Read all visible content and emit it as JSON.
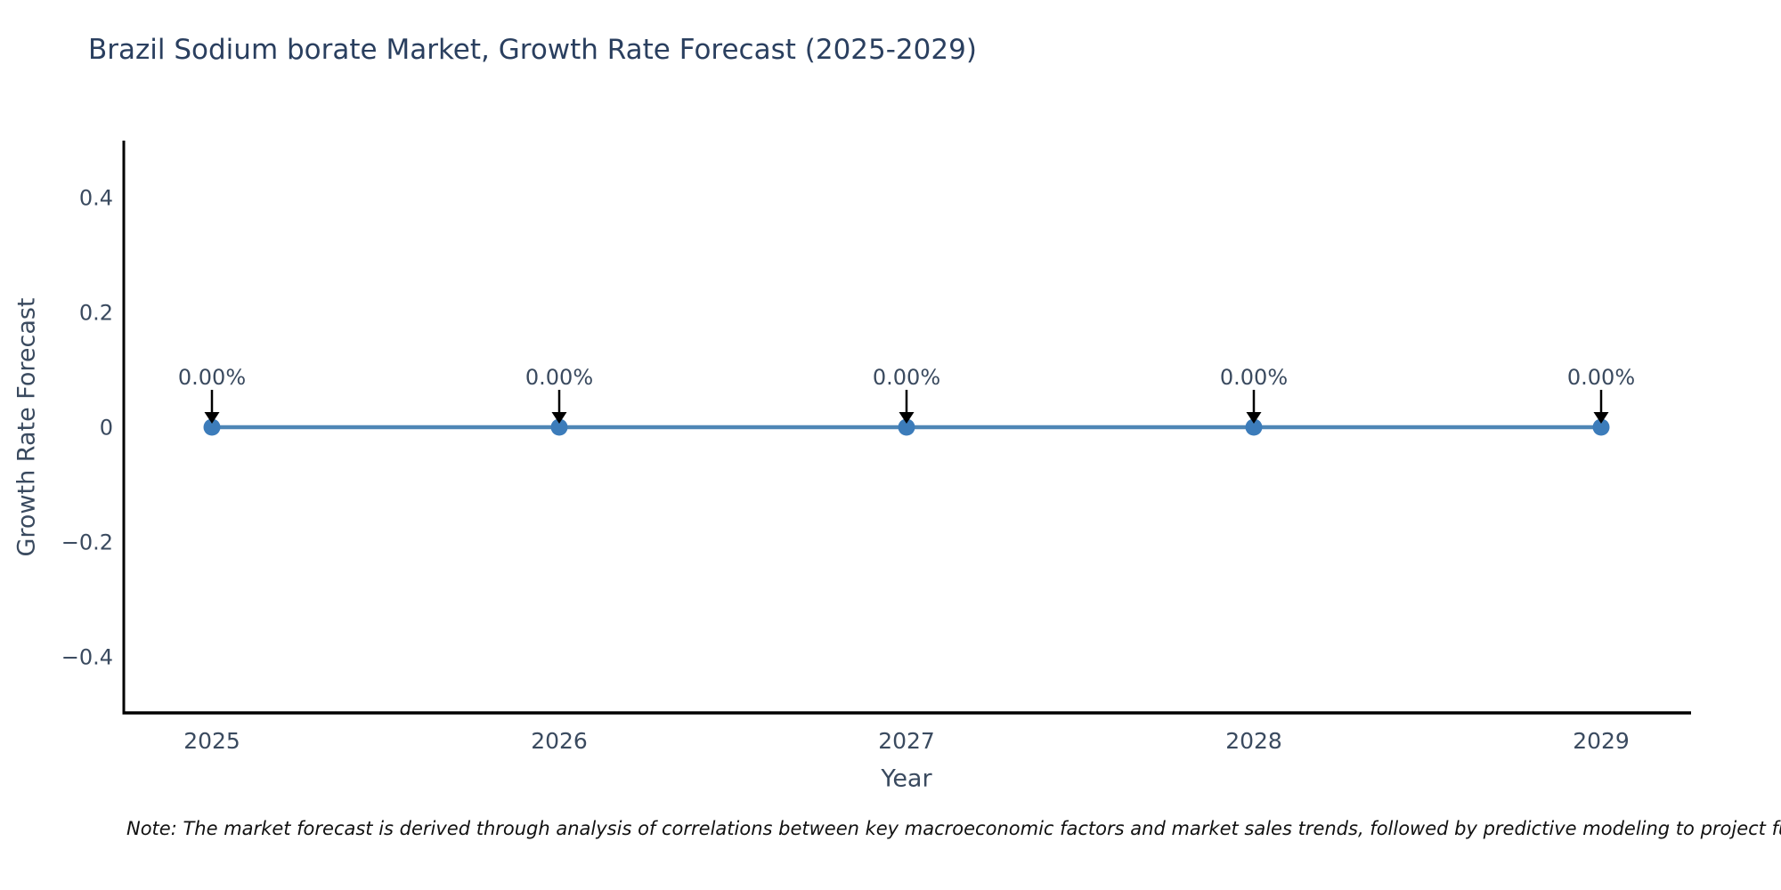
{
  "title": "Brazil Sodium borate Market, Growth Rate Forecast (2025-2029)",
  "note": "Note: The market forecast is derived through analysis of correlations between key macroeconomic factors and market sales trends, followed by predictive modeling to project future sa",
  "chart_data": {
    "type": "line",
    "title": "Brazil Sodium borate Market, Growth Rate Forecast (2025-2029)",
    "x": [
      "2025",
      "2026",
      "2027",
      "2028",
      "2029"
    ],
    "series": [
      {
        "name": "Growth Rate Forecast",
        "values": [
          0,
          0,
          0,
          0,
          0
        ]
      }
    ],
    "point_labels": [
      "0.00%",
      "0.00%",
      "0.00%",
      "0.00%",
      "0.00%"
    ],
    "xlabel": "Year",
    "ylabel": "Growth Rate Forecast",
    "ylim": [
      -0.5,
      0.5
    ],
    "yticks": [
      0.4,
      0.2,
      0,
      -0.2,
      -0.4
    ],
    "grid": false,
    "legend": "none",
    "colors": {
      "line": "#4e86b6",
      "marker": "#3c7cba",
      "arrow": "#000000",
      "axis": "#000000",
      "title_text": "#2a3f5f",
      "axis_text": "#3a4a5f",
      "note_text": "#111111"
    }
  }
}
